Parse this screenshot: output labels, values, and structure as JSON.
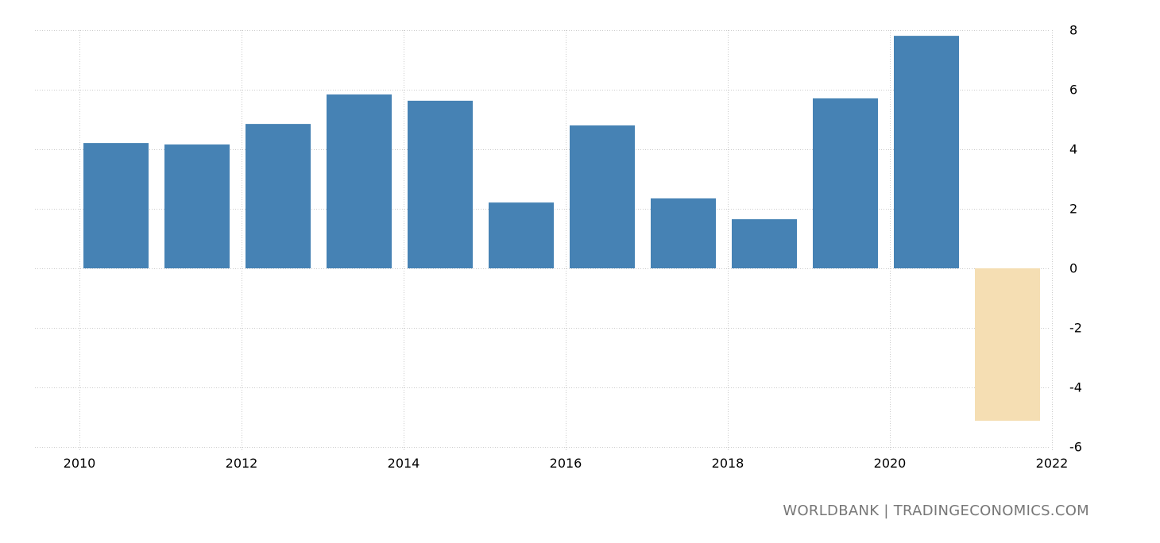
{
  "chart_data": {
    "type": "bar",
    "title": "",
    "xlabel": "",
    "ylabel": "",
    "categories": [
      "2010",
      "2011",
      "2012",
      "2013",
      "2014",
      "2015",
      "2016",
      "2017",
      "2018",
      "2019",
      "2020",
      "2021"
    ],
    "values": [
      4.21,
      4.16,
      4.85,
      5.84,
      5.63,
      2.21,
      4.8,
      2.35,
      1.65,
      5.71,
      7.81,
      -5.12
    ],
    "bar_colors": [
      "#4682b4",
      "#4682b4",
      "#4682b4",
      "#4682b4",
      "#4682b4",
      "#4682b4",
      "#4682b4",
      "#4682b4",
      "#4682b4",
      "#4682b4",
      "#4682b4",
      "#f5deb3"
    ],
    "ylim": [
      -6,
      8
    ],
    "yticks": [
      8,
      6,
      4,
      2,
      0,
      -2,
      -4,
      -6
    ],
    "xticks": [
      "2010",
      "2012",
      "2014",
      "2016",
      "2018",
      "2020",
      "2022"
    ],
    "grid": true,
    "y_axis_position": "right",
    "legend": null
  },
  "colors": {
    "positive": "#4682b4",
    "negative": "#f5deb3",
    "grid": "#cccccc"
  },
  "credit": "WORLDBANK | TRADINGECONOMICS.COM"
}
